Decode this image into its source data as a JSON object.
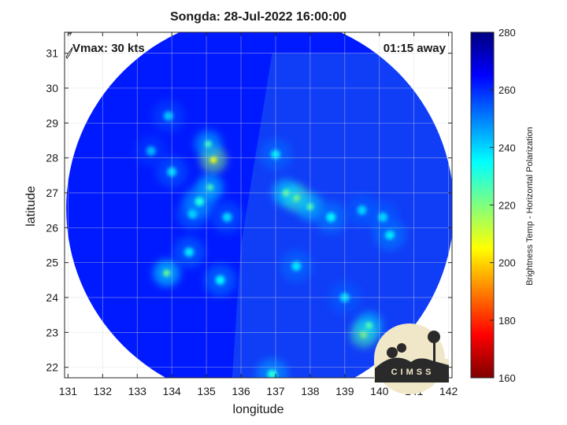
{
  "chart_data": {
    "type": "heatmap",
    "title": "Songda: 28-Jul-2022 16:00:00",
    "xlabel": "longitude",
    "ylabel": "latitude",
    "xlim": [
      130.9,
      142.1
    ],
    "ylim": [
      21.7,
      31.6
    ],
    "x_ticks": [
      "131",
      "132",
      "133",
      "134",
      "135",
      "136",
      "137",
      "138",
      "139",
      "140",
      "141",
      "142"
    ],
    "y_ticks": [
      "22",
      "23",
      "24",
      "25",
      "26",
      "27",
      "28",
      "29",
      "30",
      "31"
    ],
    "grid": true,
    "colorbar": {
      "label": "Brightness Temp - Horizontal Polarization",
      "range": [
        160,
        280
      ],
      "ticks": [
        "160",
        "180",
        "200",
        "220",
        "240",
        "260",
        "280"
      ],
      "colormap": "jet"
    },
    "swath": {
      "center_lon": 136.55,
      "center_lat": 26.55,
      "radius_deg": 5.55
    },
    "background_temp": 262,
    "features": [
      {
        "lon": 135.2,
        "lat": 27.95,
        "temp": 205
      },
      {
        "lon": 135.05,
        "lat": 28.4,
        "temp": 228
      },
      {
        "lon": 135.1,
        "lat": 27.15,
        "temp": 225
      },
      {
        "lon": 133.85,
        "lat": 24.7,
        "temp": 222
      },
      {
        "lon": 134.6,
        "lat": 26.4,
        "temp": 238
      },
      {
        "lon": 134.8,
        "lat": 26.75,
        "temp": 232
      },
      {
        "lon": 134.0,
        "lat": 27.6,
        "temp": 240
      },
      {
        "lon": 133.4,
        "lat": 28.2,
        "temp": 244
      },
      {
        "lon": 133.9,
        "lat": 29.2,
        "temp": 242
      },
      {
        "lon": 134.5,
        "lat": 25.3,
        "temp": 238
      },
      {
        "lon": 135.6,
        "lat": 26.3,
        "temp": 240
      },
      {
        "lon": 135.4,
        "lat": 24.5,
        "temp": 236
      },
      {
        "lon": 137.6,
        "lat": 26.85,
        "temp": 214
      },
      {
        "lon": 137.3,
        "lat": 27.0,
        "temp": 224
      },
      {
        "lon": 138.0,
        "lat": 26.6,
        "temp": 226
      },
      {
        "lon": 138.6,
        "lat": 26.3,
        "temp": 236
      },
      {
        "lon": 137.0,
        "lat": 28.1,
        "temp": 238
      },
      {
        "lon": 139.5,
        "lat": 26.5,
        "temp": 240
      },
      {
        "lon": 140.3,
        "lat": 25.8,
        "temp": 236
      },
      {
        "lon": 140.1,
        "lat": 26.3,
        "temp": 240
      },
      {
        "lon": 137.6,
        "lat": 24.9,
        "temp": 238
      },
      {
        "lon": 139.0,
        "lat": 24.0,
        "temp": 240
      },
      {
        "lon": 139.55,
        "lat": 22.95,
        "temp": 212
      },
      {
        "lon": 139.7,
        "lat": 23.2,
        "temp": 226
      },
      {
        "lon": 136.9,
        "lat": 21.8,
        "temp": 232
      }
    ]
  },
  "overlays": {
    "vmax": "Vmax: 30 kts",
    "away": "01:15 away"
  },
  "logo_text": "CIMSS"
}
